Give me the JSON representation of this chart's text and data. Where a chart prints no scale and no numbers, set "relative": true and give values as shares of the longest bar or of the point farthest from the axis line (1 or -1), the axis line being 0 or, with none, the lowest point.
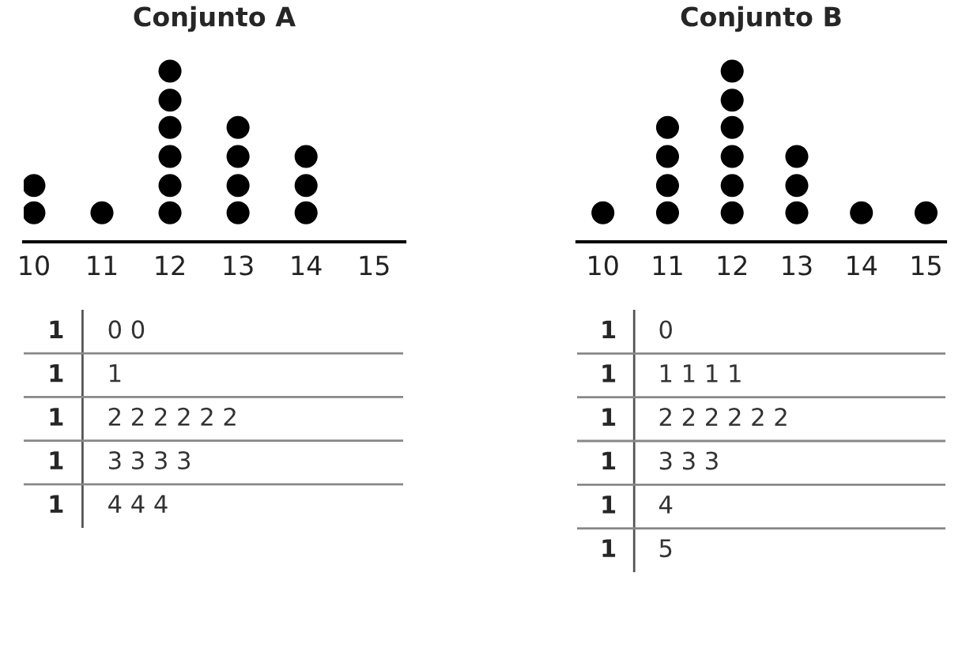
{
  "chart_data": [
    {
      "type": "scatter",
      "title": "Conjunto A",
      "relative": true,
      "marker": "circle",
      "xlim": [
        9.85,
        15.45
      ],
      "xticks": [
        10,
        11,
        12,
        13,
        14,
        15
      ],
      "series": [
        {
          "color": "#000000",
          "x": [
            10,
            10,
            11,
            12,
            12,
            12,
            12,
            12,
            12,
            13,
            13,
            13,
            13,
            14,
            14,
            14
          ],
          "values": [
            0.17,
            0.33,
            0.17,
            0.17,
            0.33,
            0.5,
            0.67,
            0.83,
            1,
            0.17,
            0.33,
            0.5,
            0.67,
            0.17,
            0.33,
            0.5
          ]
        }
      ]
    },
    {
      "type": "scatter",
      "title": "Conjunto B",
      "relative": true,
      "marker": "circle",
      "xlim": [
        9.6,
        15.3
      ],
      "xticks": [
        10,
        11,
        12,
        13,
        14,
        15
      ],
      "series": [
        {
          "color": "#000000",
          "x": [
            10,
            11,
            11,
            11,
            11,
            12,
            12,
            12,
            12,
            12,
            12,
            13,
            13,
            13,
            14,
            15
          ],
          "values": [
            0.17,
            0.17,
            0.33,
            0.5,
            0.67,
            0.17,
            0.33,
            0.5,
            0.67,
            0.83,
            1,
            0.17,
            0.33,
            0.5,
            0.17,
            0.17
          ]
        }
      ]
    },
    {
      "type": "other",
      "y_categories": [
        "1",
        "1",
        "1",
        "1",
        "1"
      ],
      "annotations": [
        "0 0",
        "1",
        "2 2 2 2 2 2",
        "3 3 3 3",
        "4 4 4"
      ]
    },
    {
      "type": "other",
      "y_categories": [
        "1",
        "1",
        "1",
        "1",
        "1",
        "1"
      ],
      "annotations": [
        "0",
        "1 1 1 1",
        "2 2 2 2 2 2",
        "3 3 3",
        "4",
        "5"
      ]
    }
  ]
}
